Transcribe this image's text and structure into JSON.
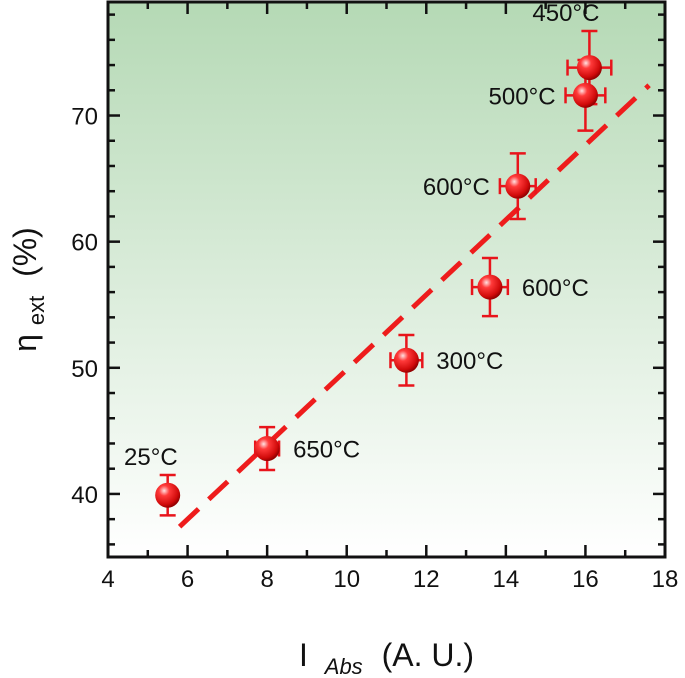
{
  "chart_data": {
    "type": "scatter",
    "title": "",
    "xlabel_main": "I",
    "xlabel_sub": "Abs",
    "xlabel_unit": "(A. U.)",
    "ylabel_main": "η",
    "ylabel_sub": "ext",
    "ylabel_unit": "(%)",
    "xlim": [
      4,
      18
    ],
    "ylim": [
      35,
      79
    ],
    "xticks": [
      4,
      6,
      8,
      10,
      12,
      14,
      16,
      18
    ],
    "yticks": [
      40,
      50,
      60,
      70
    ],
    "grid": false,
    "legend": "none",
    "colors": {
      "points": "#e8141b",
      "fit_line": "#ee1c1c",
      "bg_top": "#b5d9b5",
      "bg_bottom": "#ffffff",
      "axis": "#111111"
    },
    "points": [
      {
        "label": "25°C",
        "x": 5.5,
        "y": 39.9,
        "xerr": 0.2,
        "yerr": 1.6,
        "label_pos": "above-left"
      },
      {
        "label": "650°C",
        "x": 8.0,
        "y": 43.6,
        "xerr": 0.3,
        "yerr": 1.7,
        "label_pos": "right"
      },
      {
        "label": "300°C",
        "x": 11.5,
        "y": 50.6,
        "xerr": 0.4,
        "yerr": 2.0,
        "label_pos": "right"
      },
      {
        "label": "600°C",
        "x": 13.6,
        "y": 56.4,
        "xerr": 0.45,
        "yerr": 2.3,
        "label_pos": "right"
      },
      {
        "label": "600°C",
        "x": 14.3,
        "y": 64.4,
        "xerr": 0.45,
        "yerr": 2.6,
        "label_pos": "left"
      },
      {
        "label": "500°C",
        "x": 16.0,
        "y": 71.6,
        "xerr": 0.5,
        "yerr": 2.8,
        "label_pos": "left"
      },
      {
        "label": "450°C",
        "x": 16.1,
        "y": 73.8,
        "xerr": 0.55,
        "yerr": 2.9,
        "label_pos": "above-left"
      }
    ],
    "fit_line": {
      "style": "dashed",
      "x": [
        5.8,
        17.6
      ],
      "y": [
        37.4,
        72.4
      ]
    }
  }
}
